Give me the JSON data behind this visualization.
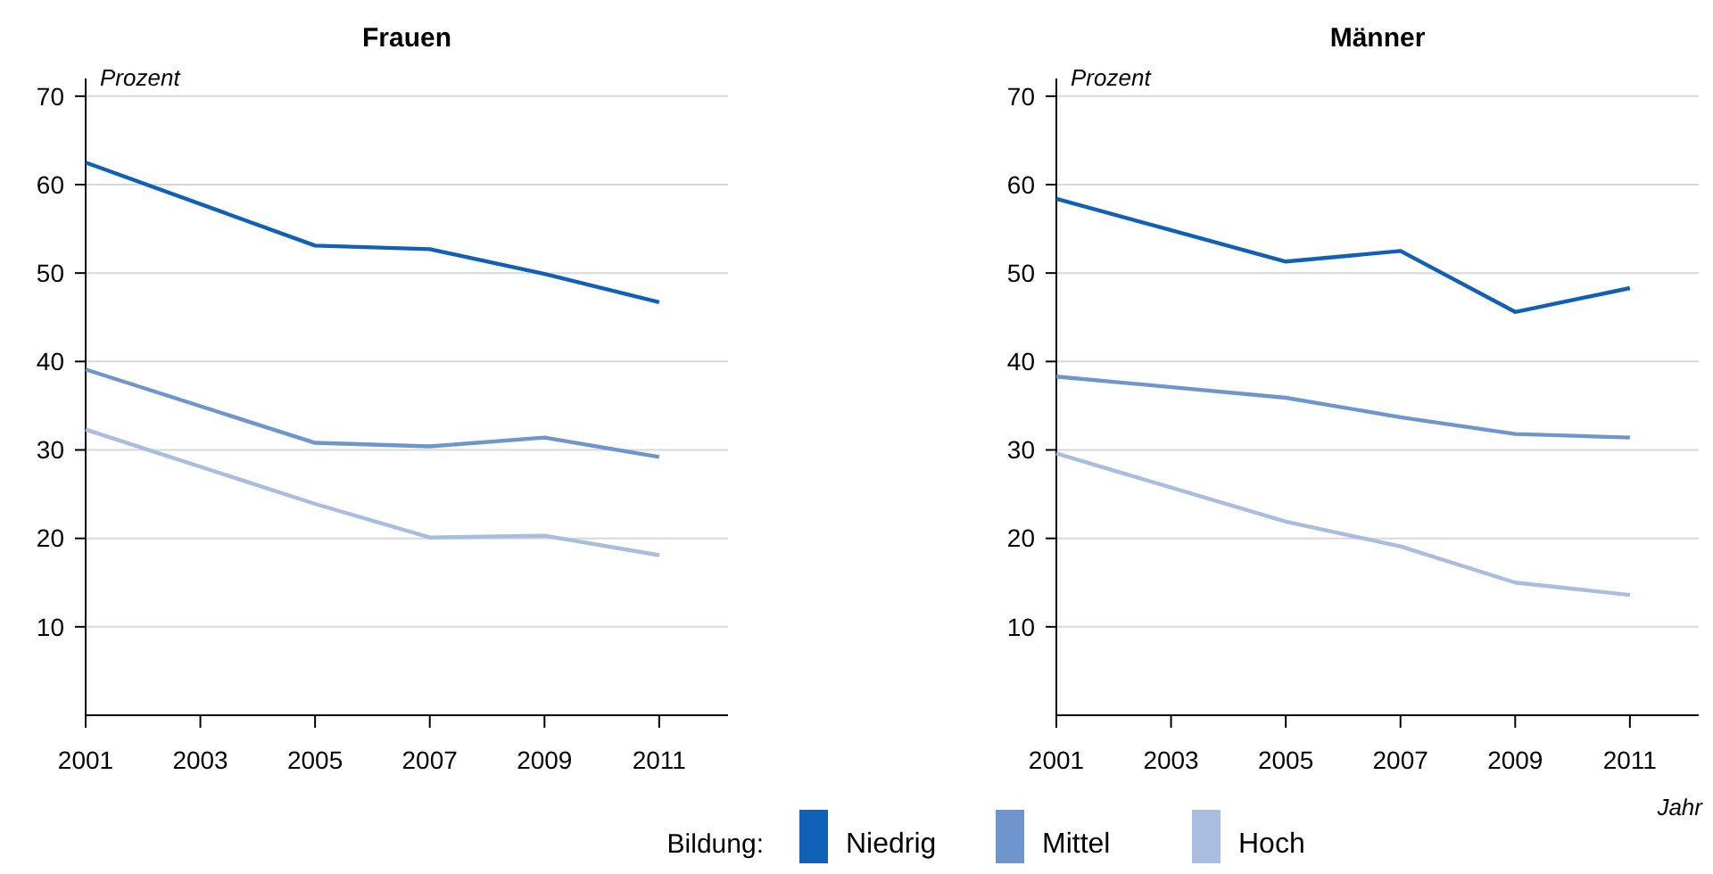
{
  "chart_data": [
    {
      "type": "line",
      "title": "Frauen",
      "ylabel": "Prozent",
      "legend_title": "Bildung:",
      "legend": "bottom",
      "grid": "y",
      "x": [
        2001,
        2005,
        2007,
        2009,
        2011
      ],
      "xlim": [
        2001,
        2012.2
      ],
      "xticks": [
        2001,
        2003,
        2005,
        2007,
        2009,
        2011
      ],
      "ylim": [
        0,
        72
      ],
      "yticks": [
        10,
        20,
        30,
        40,
        50,
        60,
        70
      ],
      "series": [
        {
          "name": "Niedrig",
          "color": "#1060b8",
          "values": [
            62.5,
            53.1,
            52.7,
            49.9,
            46.7
          ]
        },
        {
          "name": "Mittel",
          "color": "#6f96cc",
          "values": [
            39.1,
            30.8,
            30.4,
            31.4,
            29.2
          ]
        },
        {
          "name": "Hoch",
          "color": "#a8bde0",
          "values": [
            32.3,
            23.9,
            20.1,
            20.3,
            18.1
          ]
        }
      ]
    },
    {
      "type": "line",
      "title": "Männer",
      "ylabel": "Prozent",
      "xlabel": "Jahr",
      "grid": "y",
      "x": [
        2001,
        2005,
        2007,
        2009,
        2011
      ],
      "xlim": [
        2001,
        2012.2
      ],
      "xticks": [
        2001,
        2003,
        2005,
        2007,
        2009,
        2011
      ],
      "ylim": [
        0,
        72
      ],
      "yticks": [
        10,
        20,
        30,
        40,
        50,
        60,
        70
      ],
      "series": [
        {
          "color": "#1060b8",
          "values": [
            58.4,
            51.3,
            52.5,
            45.6,
            48.3
          ]
        },
        {
          "color": "#6f96cc",
          "values": [
            38.3,
            35.9,
            33.7,
            31.8,
            31.4
          ]
        },
        {
          "color": "#a8bde0",
          "values": [
            29.6,
            21.9,
            19.1,
            15.0,
            13.6
          ]
        }
      ]
    }
  ]
}
